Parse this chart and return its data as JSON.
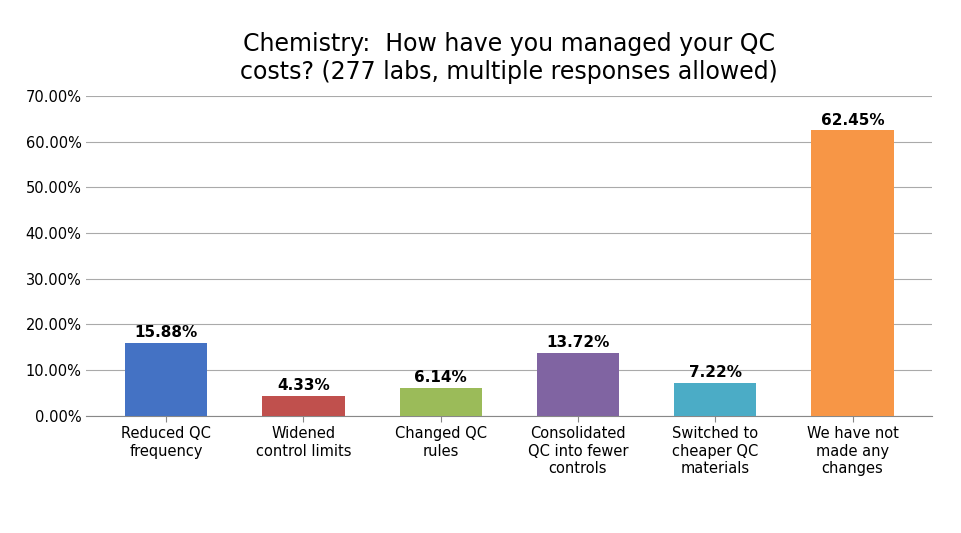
{
  "title": "Chemistry:  How have you managed your QC\ncosts? (277 labs, multiple responses allowed)",
  "categories": [
    "Reduced QC\nfrequency",
    "Widened\ncontrol limits",
    "Changed QC\nrules",
    "Consolidated\nQC into fewer\ncontrols",
    "Switched to\ncheaper QC\nmaterials",
    "We have not\nmade any\nchanges"
  ],
  "values": [
    0.1588,
    0.0433,
    0.0614,
    0.1372,
    0.0722,
    0.6245
  ],
  "labels": [
    "15.88%",
    "4.33%",
    "6.14%",
    "13.72%",
    "7.22%",
    "62.45%"
  ],
  "bar_colors": [
    "#4472C4",
    "#C0504D",
    "#9BBB59",
    "#8064A2",
    "#4BACC6",
    "#F79646"
  ],
  "ylim": [
    0,
    0.7
  ],
  "yticks": [
    0.0,
    0.1,
    0.2,
    0.3,
    0.4,
    0.5,
    0.6,
    0.7
  ],
  "ytick_labels": [
    "0.00%",
    "10.00%",
    "20.00%",
    "30.00%",
    "40.00%",
    "50.00%",
    "60.00%",
    "70.00%"
  ],
  "background_color": "#FFFFFF",
  "title_fontsize": 17,
  "label_fontsize": 11,
  "tick_fontsize": 10.5
}
